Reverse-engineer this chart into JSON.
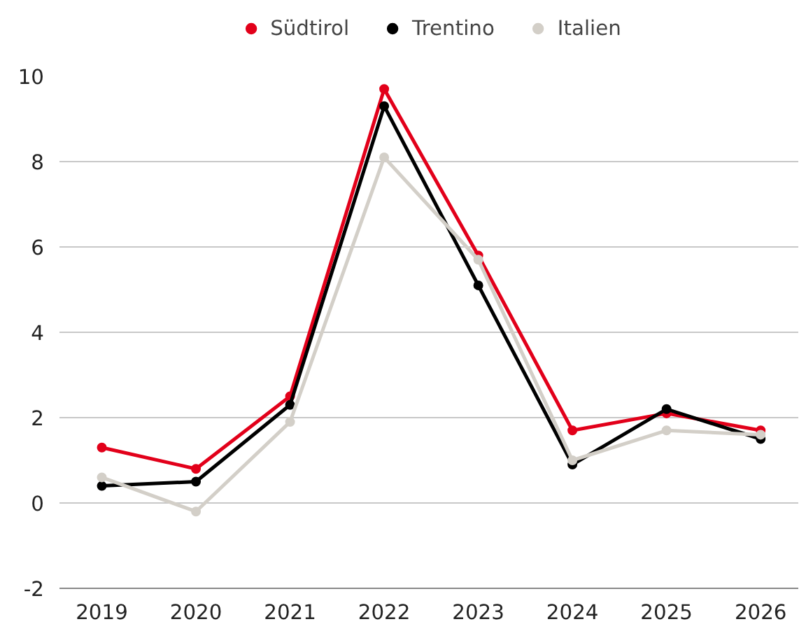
{
  "chart_data": {
    "type": "line",
    "categories": [
      "2019",
      "2020",
      "2021",
      "2022",
      "2023",
      "2024",
      "2025",
      "2026"
    ],
    "series": [
      {
        "name": "Südtirol",
        "color": "#e2001a",
        "values": [
          1.3,
          0.8,
          2.5,
          9.7,
          5.8,
          1.7,
          2.1,
          1.7
        ]
      },
      {
        "name": "Trentino",
        "color": "#000000",
        "values": [
          0.4,
          0.5,
          2.3,
          9.3,
          5.1,
          0.9,
          2.2,
          1.5
        ]
      },
      {
        "name": "Italien",
        "color": "#d3cfc8",
        "values": [
          0.6,
          -0.2,
          1.9,
          8.1,
          5.7,
          1.0,
          1.7,
          1.6
        ]
      }
    ],
    "ylim": [
      -2,
      10
    ],
    "yticks": [
      -2,
      0,
      2,
      4,
      6,
      8,
      10
    ],
    "grid": "y",
    "legend": "top",
    "marker": "circle",
    "line_style": "solid"
  }
}
